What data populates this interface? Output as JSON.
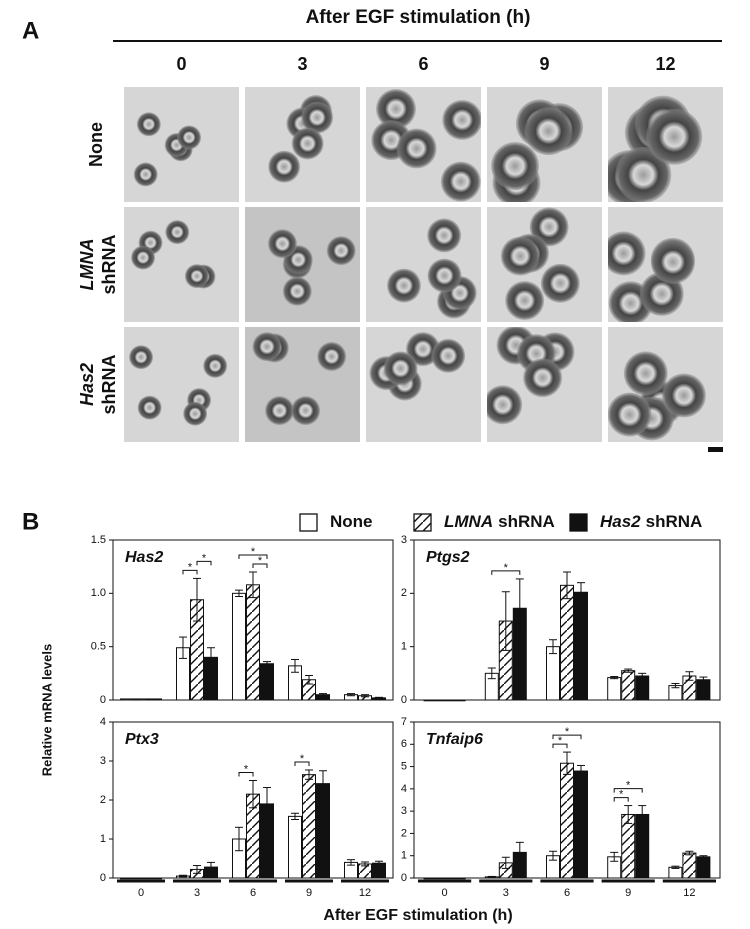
{
  "panel_a": {
    "letter": "A",
    "title": "After EGF stimulation (h)",
    "columns": [
      "0",
      "3",
      "6",
      "9",
      "12"
    ],
    "rows": [
      {
        "label": "None"
      },
      {
        "gene": "LMNA",
        "label": "shRNA"
      },
      {
        "gene": "Has2",
        "label": "shRNA"
      }
    ]
  },
  "panel_b": {
    "letter": "B",
    "legend": [
      {
        "label": "None",
        "color": "#ffffff"
      },
      {
        "gene": "LMNA",
        "label": "shRNA",
        "color": "#ffffff",
        "hatch": true
      },
      {
        "gene": "Has2",
        "label": "shRNA",
        "color": "#111111"
      }
    ],
    "y_label": "Relative mRNA levels",
    "x_label": "After EGF stimulation (h)",
    "categories": [
      "0",
      "3",
      "6",
      "9",
      "12"
    ]
  },
  "chart_data": [
    {
      "type": "bar",
      "title": "Has2",
      "ylim": [
        0,
        1.5
      ],
      "yticks": [
        0,
        0.5,
        {
          "value": 1,
          "label": "1.0"
        },
        1.5
      ],
      "series": [
        {
          "values": [
            0.01,
            0.49,
            1.0,
            0.32,
            0.05
          ],
          "errors": [
            0,
            0.1,
            0.03,
            0.06,
            0.01
          ]
        },
        {
          "values": [
            0.01,
            0.94,
            1.08,
            0.19,
            0.04
          ],
          "errors": [
            0,
            0.2,
            0.12,
            0.04,
            0.01
          ]
        },
        {
          "values": [
            0.01,
            0.4,
            0.34,
            0.05,
            0.02
          ],
          "errors": [
            0,
            0.09,
            0.02,
            0.01,
            0.005
          ]
        }
      ],
      "significance": [
        {
          "category": 1,
          "pair": [
            0,
            1
          ],
          "label": "*"
        },
        {
          "category": 1,
          "pair": [
            1,
            2
          ],
          "label": "*"
        },
        {
          "category": 2,
          "pair": [
            1,
            2
          ],
          "label": "*"
        },
        {
          "category": 2,
          "pair": [
            0,
            2
          ],
          "label": "*"
        }
      ]
    },
    {
      "type": "bar",
      "title": "Ptgs2",
      "ylim": [
        0,
        3
      ],
      "yticks": [
        0,
        1,
        2,
        3
      ],
      "series": [
        {
          "values": [
            0,
            0.5,
            1.0,
            0.42,
            0.27
          ],
          "errors": [
            0,
            0.1,
            0.13,
            0.02,
            0.04
          ]
        },
        {
          "values": [
            0,
            1.48,
            2.15,
            0.55,
            0.45
          ],
          "errors": [
            0,
            0.55,
            0.25,
            0.03,
            0.08
          ]
        },
        {
          "values": [
            0,
            1.72,
            2.02,
            0.45,
            0.38
          ],
          "errors": [
            0,
            0.55,
            0.18,
            0.05,
            0.05
          ]
        }
      ],
      "significance": [
        {
          "category": 1,
          "pair": [
            0,
            2
          ],
          "label": "*"
        }
      ]
    },
    {
      "type": "bar",
      "title": "Ptx3",
      "ylim": [
        0,
        4
      ],
      "yticks": [
        0,
        1,
        2,
        3,
        4
      ],
      "series": [
        {
          "values": [
            0,
            0.05,
            1.0,
            1.58,
            0.4
          ],
          "errors": [
            0,
            0.02,
            0.3,
            0.08,
            0.07
          ]
        },
        {
          "values": [
            0,
            0.22,
            2.15,
            2.65,
            0.36
          ],
          "errors": [
            0,
            0.1,
            0.35,
            0.12,
            0.05
          ]
        },
        {
          "values": [
            0,
            0.28,
            1.9,
            2.42,
            0.38
          ],
          "errors": [
            0,
            0.12,
            0.42,
            0.33,
            0.05
          ]
        }
      ],
      "significance": [
        {
          "category": 2,
          "pair": [
            0,
            1
          ],
          "label": "*"
        },
        {
          "category": 3,
          "pair": [
            0,
            1
          ],
          "label": "*"
        }
      ]
    },
    {
      "type": "bar",
      "title": "Tnfaip6",
      "ylim": [
        0,
        7
      ],
      "yticks": [
        0,
        1,
        2,
        3,
        4,
        5,
        6,
        7
      ],
      "series": [
        {
          "values": [
            0,
            0.05,
            1.0,
            0.95,
            0.48
          ],
          "errors": [
            0,
            0.02,
            0.2,
            0.2,
            0.05
          ]
        },
        {
          "values": [
            0,
            0.68,
            5.15,
            2.85,
            1.12
          ],
          "errors": [
            0,
            0.25,
            0.5,
            0.4,
            0.08
          ]
        },
        {
          "values": [
            0,
            1.15,
            4.8,
            2.85,
            0.95
          ],
          "errors": [
            0,
            0.45,
            0.25,
            0.4,
            0.05
          ]
        }
      ],
      "significance": [
        {
          "category": 2,
          "pair": [
            0,
            1
          ],
          "label": "*"
        },
        {
          "category": 2,
          "pair": [
            0,
            2
          ],
          "label": "*"
        },
        {
          "category": 3,
          "pair": [
            0,
            1
          ],
          "label": "*"
        },
        {
          "category": 3,
          "pair": [
            0,
            2
          ],
          "label": "*"
        }
      ]
    }
  ]
}
